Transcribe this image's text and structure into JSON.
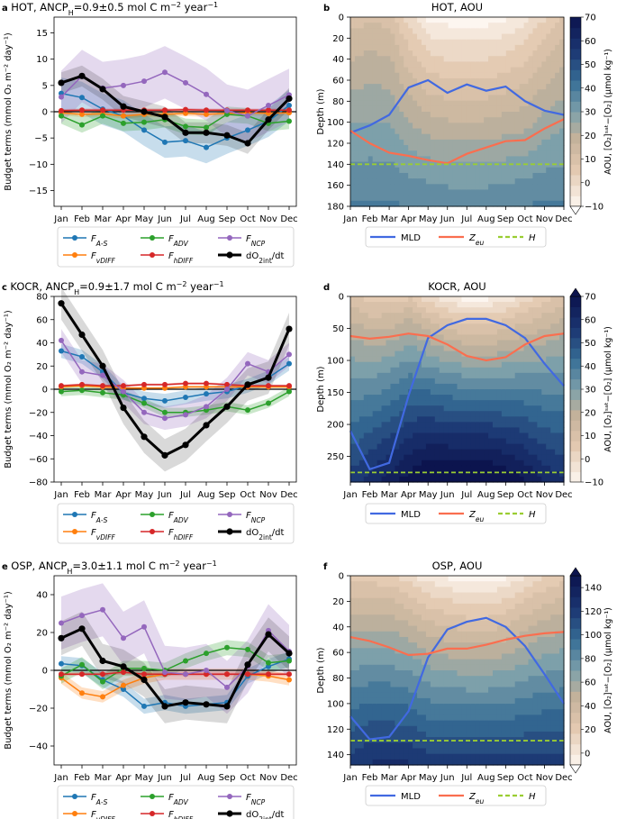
{
  "months": [
    "Jan",
    "Feb",
    "Mar",
    "Apr",
    "May",
    "Jun",
    "Jul",
    "Aug",
    "Sep",
    "Oct",
    "Nov",
    "Dec"
  ],
  "colors": {
    "F_AS": "#1f77b4",
    "F_vDIFF": "#ff7f0e",
    "F_ADV": "#2ca02c",
    "F_hDIFF": "#d62728",
    "F_NCP": "#9467bd",
    "dO2": "#000000",
    "MLD": "#4169e1",
    "Zeu": "#fa6e4f",
    "H": "#9acd32"
  },
  "legend_budget": [
    {
      "key": "F_AS",
      "main": "F",
      "sub": "A-S"
    },
    {
      "key": "F_ADV",
      "main": "F",
      "sub": "ADV"
    },
    {
      "key": "F_NCP",
      "main": "F",
      "sub": "NCP"
    },
    {
      "key": "F_vDIFF",
      "main": "F",
      "sub": "vDIFF"
    },
    {
      "key": "F_hDIFF",
      "main": "F",
      "sub": "hDIFF"
    },
    {
      "key": "dO2",
      "main": "dO",
      "sub": "2int",
      "tail": "/dt"
    }
  ],
  "legend_aou": [
    {
      "key": "MLD",
      "main": "MLD",
      "sub": ""
    },
    {
      "key": "Zeu",
      "main": "Z",
      "sub": "eu"
    },
    {
      "key": "H",
      "main": "H",
      "sub": ""
    }
  ],
  "ylabel_budget": "Budget terms (mmol O₂ m⁻² day⁻¹)",
  "ylabel_depth": "Depth (m)",
  "colorbar_label": "AOU, [O₂]ˢᵃᵗ−[O₂] (μmol kg⁻¹)",
  "chart_data": [
    {
      "panel": "a",
      "type": "line",
      "title": "HOT, ANCP",
      "title_sub": "H",
      "title_val": "=0.9±0.5 mol C m",
      "title_exp": "−2",
      "title_tail": " year",
      "title_exp2": "−1",
      "ylim": [
        -18,
        18
      ],
      "yticks": [
        -15,
        -10,
        -5,
        0,
        5,
        10,
        15
      ],
      "series": [
        {
          "key": "F_AS",
          "values": [
            3.5,
            2.7,
            0.5,
            -0.8,
            -3.5,
            -5.8,
            -5.5,
            -6.8,
            -5,
            -3.5,
            -1.8,
            1.2
          ],
          "band": 3
        },
        {
          "key": "F_vDIFF",
          "values": [
            -0.2,
            -0.5,
            -0.4,
            -0.8,
            -0.5,
            -0.5,
            -0.3,
            -0.5,
            -0.3,
            -0.2,
            -0.3,
            -0.2
          ],
          "band": 0.5
        },
        {
          "key": "F_ADV",
          "values": [
            -0.8,
            -2.5,
            -0.8,
            -2.2,
            -2,
            -1.5,
            -2.8,
            -3,
            -0.5,
            -0.8,
            -2.2,
            -1.8
          ],
          "band": 1.5
        },
        {
          "key": "F_hDIFF",
          "values": [
            0.2,
            0.3,
            0.3,
            0.3,
            0.3,
            0.3,
            0.4,
            0.3,
            0.3,
            0.3,
            0.3,
            0.3
          ],
          "band": 0.3
        },
        {
          "key": "F_NCP",
          "values": [
            2.8,
            6.8,
            4.5,
            5,
            5.8,
            7.5,
            5.5,
            3.3,
            0.2,
            -0.8,
            1.2,
            3.2
          ],
          "band": 5
        },
        {
          "key": "dO2",
          "values": [
            5.5,
            6.8,
            4.3,
            1,
            0,
            -1,
            -4,
            -4,
            -4.5,
            -6,
            -1.5,
            2.5
          ],
          "band": 2
        }
      ]
    },
    {
      "panel": "c",
      "type": "line",
      "title": "KOCR, ANCP",
      "title_sub": "H",
      "title_val": "=0.9±1.7 mol C m",
      "title_exp": "−2",
      "title_tail": " year",
      "title_exp2": "−1",
      "ylim": [
        -80,
        80
      ],
      "yticks": [
        -80,
        -60,
        -40,
        -20,
        0,
        20,
        40,
        60,
        80
      ],
      "series": [
        {
          "key": "F_AS",
          "values": [
            33,
            28,
            15,
            -3,
            -8,
            -10,
            -7,
            -4,
            -2,
            3,
            10,
            22
          ],
          "band": 6
        },
        {
          "key": "F_vDIFF",
          "values": [
            2,
            3,
            2,
            1,
            1,
            1,
            2,
            2,
            2,
            2,
            2,
            2
          ],
          "band": 1
        },
        {
          "key": "F_ADV",
          "values": [
            -2,
            -1,
            -3,
            -5,
            -12,
            -20,
            -20,
            -18,
            -15,
            -18,
            -12,
            -2
          ],
          "band": 4
        },
        {
          "key": "F_hDIFF",
          "values": [
            3,
            4,
            3,
            3,
            4,
            4,
            5,
            5,
            4,
            3,
            3,
            3
          ],
          "band": 1
        },
        {
          "key": "F_NCP",
          "values": [
            42,
            15,
            12,
            -2,
            -20,
            -25,
            -22,
            -15,
            0,
            22,
            15,
            30
          ],
          "band": 10
        },
        {
          "key": "dO2",
          "values": [
            74,
            47,
            20,
            -16,
            -41,
            -57,
            -48,
            -31,
            -15,
            4,
            10,
            52
          ],
          "band": 14
        }
      ]
    },
    {
      "panel": "e",
      "type": "line",
      "title": "OSP, ANCP",
      "title_sub": "H",
      "title_val": "=3.0±1.1 mol C m",
      "title_exp": "−2",
      "title_tail": " year",
      "title_exp2": "−1",
      "ylim": [
        -50,
        50
      ],
      "yticks": [
        -40,
        -20,
        0,
        20,
        40
      ],
      "series": [
        {
          "key": "F_AS",
          "values": [
            3.5,
            2.5,
            -5,
            -10,
            -19,
            -17,
            -19,
            -18,
            -17,
            -3,
            2,
            6
          ],
          "band": 4
        },
        {
          "key": "F_vDIFF",
          "values": [
            -4,
            -12,
            -14,
            -8,
            -4,
            -2,
            -2,
            -2,
            -2,
            -2,
            -3,
            -5
          ],
          "band": 3
        },
        {
          "key": "F_ADV",
          "values": [
            -3,
            3,
            -6,
            1,
            1,
            0,
            5,
            9,
            12,
            11,
            4,
            5
          ],
          "band": 4
        },
        {
          "key": "F_hDIFF",
          "values": [
            -2,
            -2,
            -2,
            -1,
            -2,
            -2,
            -2,
            -2,
            -2,
            -2,
            -2,
            -2
          ],
          "band": 1
        },
        {
          "key": "F_NCP",
          "values": [
            25,
            29,
            32,
            17,
            23,
            -1,
            -2,
            0,
            -9,
            2,
            21,
            10
          ],
          "band": 14
        },
        {
          "key": "dO2",
          "values": [
            17,
            22,
            5,
            2,
            -5,
            -19,
            -17,
            -18,
            -19,
            3,
            19,
            9
          ],
          "band": 9
        }
      ]
    },
    {
      "panel": "b",
      "type": "heatmap",
      "title": "HOT, AOU",
      "ylim": [
        180,
        0
      ],
      "yticks": [
        0,
        20,
        40,
        60,
        80,
        100,
        120,
        140,
        160,
        180
      ],
      "cbar": [
        -10,
        70
      ],
      "cbar_ticks": [
        -10,
        0,
        10,
        20,
        30,
        40,
        50,
        60,
        70
      ],
      "extend": "min",
      "MLD": [
        110,
        103,
        93,
        67,
        60,
        72,
        64,
        70,
        66,
        80,
        89,
        93
      ],
      "Zeu": [
        108,
        120,
        129,
        132,
        136,
        139,
        130,
        124,
        118,
        117,
        106,
        97
      ],
      "H": 140,
      "aou_top": [
        10,
        12,
        10,
        0,
        -8,
        -10,
        -10,
        -10,
        -8,
        -5,
        2,
        8
      ],
      "aou_bottom": [
        38,
        38,
        38,
        37,
        37,
        36,
        36,
        36,
        37,
        37,
        38,
        38
      ]
    },
    {
      "panel": "d",
      "type": "heatmap",
      "title": "KOCR, AOU",
      "ylim": [
        290,
        0
      ],
      "yticks": [
        0,
        50,
        100,
        150,
        200,
        250
      ],
      "cbar": [
        -10,
        70
      ],
      "cbar_ticks": [
        -10,
        0,
        10,
        20,
        30,
        40,
        50,
        60,
        70
      ],
      "extend": "max",
      "MLD": [
        210,
        270,
        260,
        155,
        65,
        45,
        35,
        35,
        45,
        65,
        105,
        140
      ],
      "Zeu": [
        62,
        66,
        63,
        58,
        62,
        75,
        93,
        100,
        95,
        75,
        62,
        58
      ],
      "H": 275,
      "aou_top": [
        10,
        5,
        5,
        8,
        0,
        -5,
        -8,
        -8,
        -5,
        0,
        5,
        10
      ],
      "aou_bottom": [
        55,
        60,
        65,
        70,
        75,
        75,
        75,
        75,
        72,
        68,
        62,
        58
      ]
    },
    {
      "panel": "f",
      "type": "heatmap",
      "title": "OSP, AOU",
      "ylim": [
        148,
        0
      ],
      "yticks": [
        0,
        20,
        40,
        60,
        80,
        100,
        120,
        140
      ],
      "cbar": [
        -10,
        150
      ],
      "cbar_ticks": [
        0,
        20,
        40,
        60,
        80,
        100,
        120,
        140
      ],
      "extend": "both",
      "MLD": [
        110,
        128,
        126,
        106,
        64,
        42,
        36,
        33,
        40,
        55,
        77,
        100
      ],
      "Zeu": [
        48,
        51,
        56,
        62,
        61,
        57,
        57,
        54,
        50,
        47,
        45,
        44
      ],
      "H": 129,
      "aou_top": [
        20,
        20,
        18,
        10,
        0,
        -5,
        -10,
        -10,
        -5,
        5,
        15,
        20
      ],
      "aou_bottom": [
        120,
        125,
        125,
        125,
        120,
        120,
        120,
        120,
        120,
        120,
        120,
        120
      ]
    }
  ]
}
